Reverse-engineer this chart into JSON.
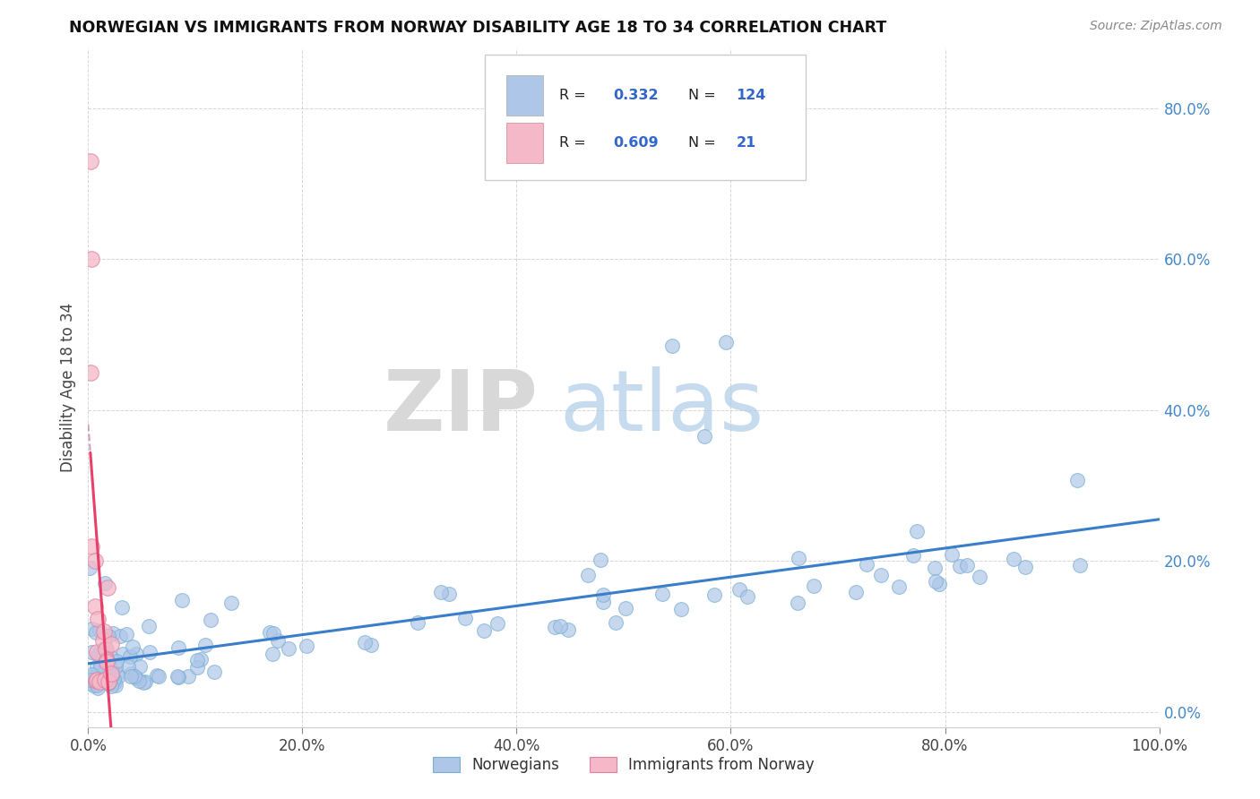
{
  "title": "NORWEGIAN VS IMMIGRANTS FROM NORWAY DISABILITY AGE 18 TO 34 CORRELATION CHART",
  "source": "Source: ZipAtlas.com",
  "ylabel": "Disability Age 18 to 34",
  "watermark_zip": "ZIP",
  "watermark_atlas": "atlas",
  "xlim": [
    0.0,
    1.0
  ],
  "ylim": [
    -0.02,
    0.88
  ],
  "xticks": [
    0.0,
    0.2,
    0.4,
    0.6,
    0.8,
    1.0
  ],
  "ytick_positions": [
    0.0,
    0.2,
    0.4,
    0.6,
    0.8
  ],
  "series1_color": "#aec6e8",
  "series1_edge": "#7aafd4",
  "series2_color": "#f4b8c8",
  "series2_edge": "#e080a0",
  "line1_color": "#3a7dc9",
  "line2_color": "#e8406a",
  "line2_dash_color": "#d0a0b8",
  "grid_color": "#cccccc",
  "title_color": "#111111",
  "axis_label_color": "#444444",
  "tick_color": "#4488cc",
  "r_value_color": "#3366cc",
  "background_color": "#ffffff",
  "legend_label_color": "#222222",
  "source_color": "#888888"
}
